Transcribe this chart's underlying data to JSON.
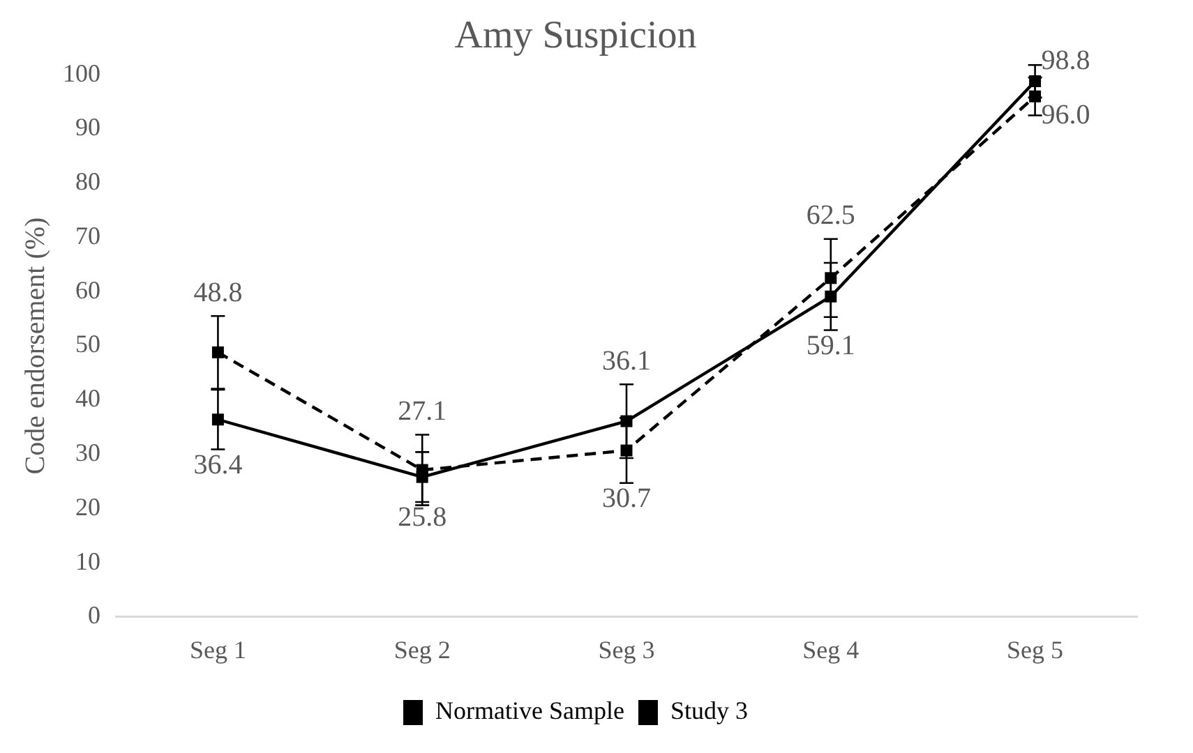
{
  "chart_data": {
    "type": "line",
    "title": "Amy Suspicion",
    "ylabel": "Code endorsement (%)",
    "categories": [
      "Seg 1",
      "Seg 2",
      "Seg 3",
      "Seg 4",
      "Seg 5"
    ],
    "series": [
      {
        "name": "Normative Sample",
        "color": "#000000",
        "line_style": "solid",
        "values": [
          36.4,
          25.8,
          36.1,
          59.1,
          98.8
        ],
        "value_labels": [
          "36.4",
          "25.8",
          "36.1",
          "59.1",
          "98.8"
        ],
        "errors": [
          5.5,
          4.6,
          6.8,
          6.2,
          3
        ]
      },
      {
        "name": "Study 3",
        "color": "#000000",
        "line_style": "dashed",
        "values": [
          48.8,
          27.1,
          30.7,
          62.5,
          96.0
        ],
        "value_labels": [
          "48.8",
          "27.1",
          "30.7",
          "62.5",
          "96.0"
        ],
        "errors": [
          6.7,
          6.5,
          6,
          7.2,
          3.5
        ]
      }
    ],
    "ylim": [
      0,
      100
    ],
    "yticks": [
      0,
      10,
      20,
      30,
      40,
      50,
      60,
      70,
      80,
      90,
      100
    ],
    "grid": false,
    "legend": "bottom",
    "marker": "square"
  }
}
